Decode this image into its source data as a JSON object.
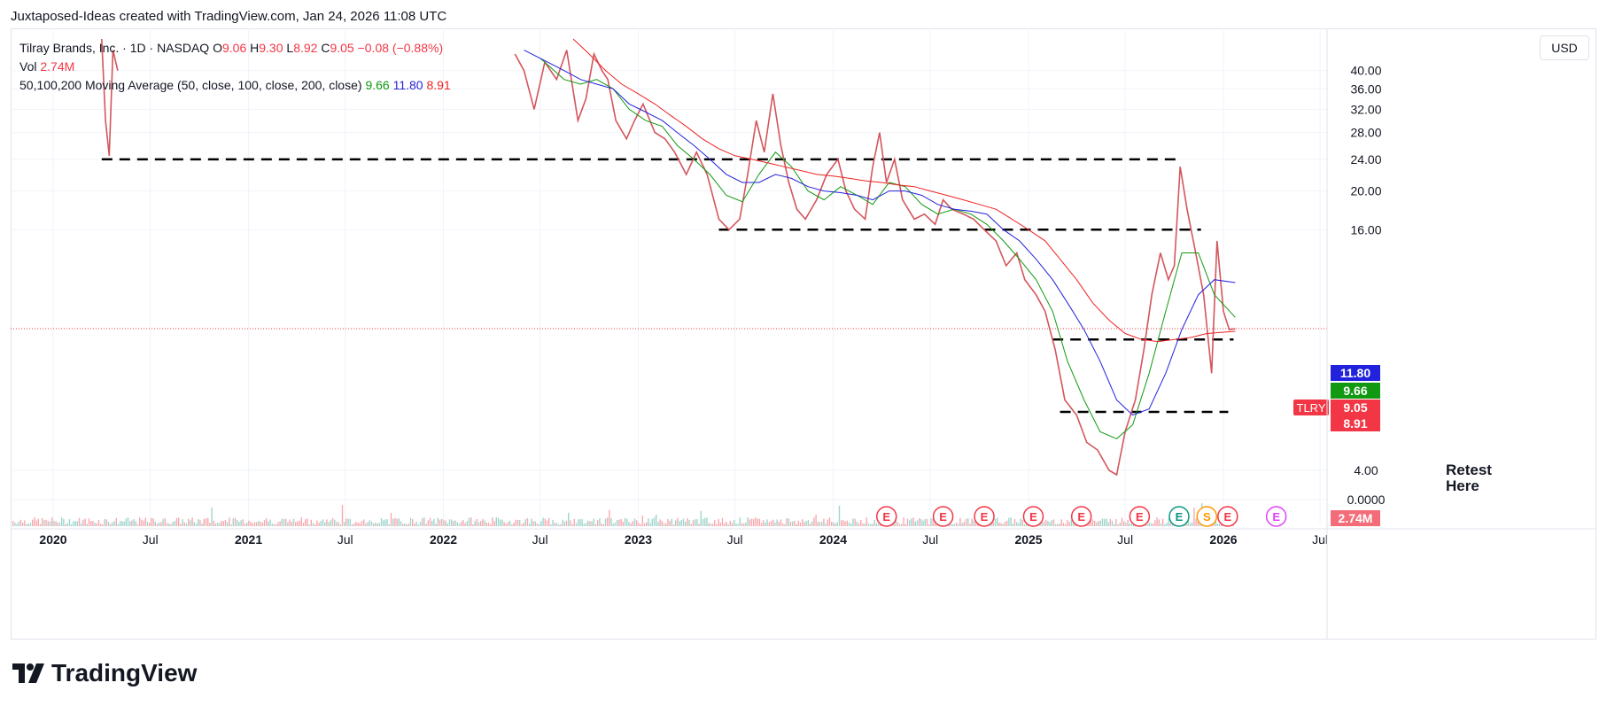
{
  "header": {
    "credit": "Juxtaposed-Ideas created with TradingView.com, Jan 24, 2026 11:08 UTC"
  },
  "legend": {
    "symbol": "Tilray Brands, Inc. · 1D · NASDAQ",
    "o_label": "O",
    "o_value": "9.06",
    "h_label": "H",
    "h_value": "9.30",
    "l_label": "L",
    "l_value": "8.92",
    "c_label": "C",
    "c_value": "9.05",
    "change": "−0.08 (−0.88%)",
    "vol_label": "Vol",
    "vol_value": "2.74M",
    "ma_label": "50,100,200 Moving Average (50, close, 100, close, 200, close)",
    "ma50_value": "9.66",
    "ma100_value": "11.80",
    "ma200_value": "8.91"
  },
  "currency_button": "USD",
  "annotation": {
    "line1": "Retest",
    "line2": "Here"
  },
  "footer": {
    "logo_text": "TradingView"
  },
  "colors": {
    "up": "#089981",
    "down": "#f23645",
    "ma50": "#119911",
    "ma100": "#2222dd",
    "ma200": "#ee2222",
    "grid": "#f0f3fa",
    "text": "#131722"
  },
  "chart_data": {
    "type": "line",
    "title": "Tilray Brands, Inc. · 1D · NASDAQ",
    "y_ticks": [
      "40.00",
      "36.00",
      "32.00",
      "28.00",
      "24.00",
      "20.00",
      "16.00",
      "4.00",
      "0.0000"
    ],
    "y_scale": "log",
    "x_ticks": [
      "2020",
      "Jul",
      "2021",
      "Jul",
      "2022",
      "Jul",
      "2023",
      "Jul",
      "2024",
      "Jul",
      "2025",
      "Jul",
      "2026",
      "Jul"
    ],
    "x_tick_major": [
      true,
      false,
      true,
      false,
      true,
      false,
      true,
      false,
      true,
      false,
      true,
      false,
      true,
      false
    ],
    "x_tick_dates": [
      "2020-01-01",
      "2020-07-01",
      "2021-01-01",
      "2021-07-01",
      "2022-01-01",
      "2022-07-01",
      "2023-01-01",
      "2023-07-01",
      "2024-01-01",
      "2024-07-01",
      "2025-01-01",
      "2025-07-01",
      "2026-01-01",
      "2026-07-01"
    ],
    "price_labels": [
      {
        "text": "11.80",
        "value": 11.8,
        "color": "#2222dd"
      },
      {
        "text": "9.66",
        "value": 9.66,
        "color": "#119911"
      },
      {
        "text": "9.05",
        "value": 9.05,
        "color": "#f23645",
        "tag": "TLRY"
      },
      {
        "text": "8.91",
        "value": 8.91,
        "color": "#f23645"
      }
    ],
    "volume_label": {
      "text": "2.74M",
      "color": "#f26d79"
    },
    "horizontal_levels": [
      {
        "value": 24.0,
        "from": "2020-04-01",
        "to": "2025-10-15"
      },
      {
        "value": 16.0,
        "from": "2023-06-01",
        "to": "2025-11-20"
      },
      {
        "value": 8.5,
        "from": "2025-02-15",
        "to": "2026-01-20"
      },
      {
        "value": 5.6,
        "from": "2025-03-01",
        "to": "2026-01-10"
      }
    ],
    "series": [
      {
        "name": "Price (close)",
        "color": "#3b3b3b",
        "points": [
          [
            "2020-04-01",
            48
          ],
          [
            "2020-04-08",
            30
          ],
          [
            "2020-04-15",
            24.5
          ],
          [
            "2020-04-22",
            45
          ],
          [
            "2020-05-01",
            40
          ],
          [
            "2022-05-15",
            44
          ],
          [
            "2022-06-01",
            40
          ],
          [
            "2022-06-20",
            32
          ],
          [
            "2022-07-10",
            42
          ],
          [
            "2022-08-01",
            38
          ],
          [
            "2022-08-20",
            45
          ],
          [
            "2022-09-10",
            30
          ],
          [
            "2022-09-25",
            34
          ],
          [
            "2022-10-10",
            44
          ],
          [
            "2022-10-25",
            40
          ],
          [
            "2022-11-05",
            38
          ],
          [
            "2022-11-20",
            30
          ],
          [
            "2022-12-10",
            27
          ],
          [
            "2022-12-25",
            30
          ],
          [
            "2023-01-10",
            33
          ],
          [
            "2023-02-01",
            28
          ],
          [
            "2023-02-20",
            27
          ],
          [
            "2023-03-10",
            25
          ],
          [
            "2023-04-01",
            22
          ],
          [
            "2023-04-20",
            25
          ],
          [
            "2023-05-10",
            22
          ],
          [
            "2023-06-01",
            17
          ],
          [
            "2023-06-20",
            16
          ],
          [
            "2023-07-10",
            17
          ],
          [
            "2023-07-25",
            22
          ],
          [
            "2023-08-10",
            30
          ],
          [
            "2023-08-25",
            25
          ],
          [
            "2023-09-10",
            35
          ],
          [
            "2023-09-25",
            26
          ],
          [
            "2023-10-10",
            21
          ],
          [
            "2023-10-25",
            18
          ],
          [
            "2023-11-10",
            17
          ],
          [
            "2023-12-01",
            19
          ],
          [
            "2023-12-20",
            22
          ],
          [
            "2024-01-10",
            24
          ],
          [
            "2024-01-25",
            20
          ],
          [
            "2024-02-10",
            18
          ],
          [
            "2024-03-01",
            17
          ],
          [
            "2024-03-15",
            23
          ],
          [
            "2024-03-28",
            28
          ],
          [
            "2024-04-10",
            21
          ],
          [
            "2024-04-25",
            24
          ],
          [
            "2024-05-10",
            19
          ],
          [
            "2024-06-01",
            17
          ],
          [
            "2024-06-20",
            17.5
          ],
          [
            "2024-07-10",
            16.5
          ],
          [
            "2024-07-25",
            19
          ],
          [
            "2024-08-10",
            18
          ],
          [
            "2024-09-01",
            17.5
          ],
          [
            "2024-09-20",
            17
          ],
          [
            "2024-10-10",
            16
          ],
          [
            "2024-11-01",
            15
          ],
          [
            "2024-11-20",
            13
          ],
          [
            "2024-12-10",
            14
          ],
          [
            "2024-12-25",
            12
          ],
          [
            "2025-01-15",
            11
          ],
          [
            "2025-02-01",
            10
          ],
          [
            "2025-02-20",
            8
          ],
          [
            "2025-03-10",
            6
          ],
          [
            "2025-04-01",
            5.5
          ],
          [
            "2025-04-20",
            4.7
          ],
          [
            "2025-05-10",
            4.5
          ],
          [
            "2025-06-01",
            4.0
          ],
          [
            "2025-06-15",
            3.9
          ],
          [
            "2025-07-01",
            5
          ],
          [
            "2025-07-20",
            6
          ],
          [
            "2025-08-05",
            8
          ],
          [
            "2025-08-20",
            11
          ],
          [
            "2025-09-05",
            14
          ],
          [
            "2025-09-20",
            12
          ],
          [
            "2025-10-01",
            13
          ],
          [
            "2025-10-12",
            23
          ],
          [
            "2025-10-25",
            18
          ],
          [
            "2025-11-10",
            14
          ],
          [
            "2025-11-25",
            11
          ],
          [
            "2025-12-10",
            7
          ],
          [
            "2025-12-20",
            15
          ],
          [
            "2026-01-01",
            10
          ],
          [
            "2026-01-12",
            9
          ],
          [
            "2026-01-23",
            9.05
          ]
        ]
      },
      {
        "name": "MA 50",
        "color": "#119911",
        "points": [
          [
            "2022-07-01",
            43
          ],
          [
            "2022-08-15",
            38
          ],
          [
            "2022-09-15",
            37
          ],
          [
            "2022-10-15",
            38
          ],
          [
            "2022-11-15",
            36
          ],
          [
            "2022-12-15",
            32
          ],
          [
            "2023-01-15",
            30
          ],
          [
            "2023-02-15",
            29
          ],
          [
            "2023-03-15",
            26
          ],
          [
            "2023-04-15",
            24
          ],
          [
            "2023-05-15",
            22
          ],
          [
            "2023-06-15",
            19.5
          ],
          [
            "2023-07-15",
            18.8
          ],
          [
            "2023-08-15",
            22
          ],
          [
            "2023-09-15",
            25
          ],
          [
            "2023-10-15",
            23
          ],
          [
            "2023-11-15",
            20
          ],
          [
            "2023-12-15",
            19
          ],
          [
            "2024-01-15",
            20.5
          ],
          [
            "2024-02-15",
            19.5
          ],
          [
            "2024-03-15",
            18.5
          ],
          [
            "2024-04-15",
            21
          ],
          [
            "2024-05-15",
            20.5
          ],
          [
            "2024-06-15",
            18.5
          ],
          [
            "2024-07-15",
            17.5
          ],
          [
            "2024-08-15",
            18
          ],
          [
            "2024-09-15",
            17.5
          ],
          [
            "2024-10-15",
            16.5
          ],
          [
            "2024-11-15",
            15
          ],
          [
            "2024-12-15",
            13.5
          ],
          [
            "2025-01-15",
            12
          ],
          [
            "2025-02-15",
            10
          ],
          [
            "2025-03-15",
            7.5
          ],
          [
            "2025-04-15",
            6
          ],
          [
            "2025-05-15",
            5
          ],
          [
            "2025-06-15",
            4.8
          ],
          [
            "2025-07-15",
            5.2
          ],
          [
            "2025-08-15",
            7
          ],
          [
            "2025-09-15",
            10
          ],
          [
            "2025-10-15",
            14
          ],
          [
            "2025-11-15",
            14
          ],
          [
            "2025-12-15",
            11
          ],
          [
            "2026-01-23",
            9.66
          ]
        ]
      },
      {
        "name": "MA 100",
        "color": "#2222dd",
        "points": [
          [
            "2022-06-01",
            45
          ],
          [
            "2022-07-15",
            42
          ],
          [
            "2022-08-15",
            40
          ],
          [
            "2022-09-15",
            38
          ],
          [
            "2022-10-15",
            37
          ],
          [
            "2022-11-15",
            36
          ],
          [
            "2022-12-15",
            33
          ],
          [
            "2023-01-15",
            31.5
          ],
          [
            "2023-02-15",
            30
          ],
          [
            "2023-03-15",
            28
          ],
          [
            "2023-04-15",
            26
          ],
          [
            "2023-05-15",
            24
          ],
          [
            "2023-06-15",
            22
          ],
          [
            "2023-07-15",
            21
          ],
          [
            "2023-08-15",
            21
          ],
          [
            "2023-09-15",
            22
          ],
          [
            "2023-10-15",
            21.5
          ],
          [
            "2023-11-15",
            20.5
          ],
          [
            "2023-12-15",
            20
          ],
          [
            "2024-01-15",
            19.8
          ],
          [
            "2024-02-15",
            19.5
          ],
          [
            "2024-03-15",
            19
          ],
          [
            "2024-04-15",
            20
          ],
          [
            "2024-05-15",
            20
          ],
          [
            "2024-06-15",
            19.5
          ],
          [
            "2024-07-15",
            18.5
          ],
          [
            "2024-08-15",
            18
          ],
          [
            "2024-09-15",
            17.8
          ],
          [
            "2024-10-15",
            17.5
          ],
          [
            "2024-11-15",
            16
          ],
          [
            "2024-12-15",
            15
          ],
          [
            "2025-01-15",
            13.5
          ],
          [
            "2025-02-15",
            12
          ],
          [
            "2025-03-15",
            10.5
          ],
          [
            "2025-04-15",
            9
          ],
          [
            "2025-05-15",
            7.5
          ],
          [
            "2025-06-15",
            6
          ],
          [
            "2025-07-15",
            5.5
          ],
          [
            "2025-08-15",
            5.7
          ],
          [
            "2025-09-15",
            7
          ],
          [
            "2025-10-15",
            9
          ],
          [
            "2025-11-15",
            11
          ],
          [
            "2025-12-15",
            12
          ],
          [
            "2026-01-23",
            11.8
          ]
        ]
      },
      {
        "name": "MA 200",
        "color": "#ee2222",
        "points": [
          [
            "2022-09-01",
            48
          ],
          [
            "2022-10-01",
            44
          ],
          [
            "2022-11-01",
            40
          ],
          [
            "2022-12-01",
            37
          ],
          [
            "2023-01-01",
            35
          ],
          [
            "2023-02-01",
            33
          ],
          [
            "2023-03-01",
            31
          ],
          [
            "2023-04-01",
            29
          ],
          [
            "2023-05-01",
            27
          ],
          [
            "2023-06-01",
            25.5
          ],
          [
            "2023-07-01",
            24.5
          ],
          [
            "2023-08-01",
            24
          ],
          [
            "2023-09-01",
            23.5
          ],
          [
            "2023-10-01",
            23
          ],
          [
            "2023-11-01",
            22.5
          ],
          [
            "2023-12-01",
            22
          ],
          [
            "2024-01-01",
            21.8
          ],
          [
            "2024-02-01",
            21.5
          ],
          [
            "2024-03-01",
            21.2
          ],
          [
            "2024-04-01",
            21
          ],
          [
            "2024-05-01",
            20.7
          ],
          [
            "2024-06-01",
            20.5
          ],
          [
            "2024-07-01",
            20
          ],
          [
            "2024-08-01",
            19.5
          ],
          [
            "2024-09-01",
            19
          ],
          [
            "2024-10-01",
            18.5
          ],
          [
            "2024-11-01",
            18
          ],
          [
            "2024-12-01",
            17
          ],
          [
            "2025-01-01",
            16
          ],
          [
            "2025-02-01",
            15
          ],
          [
            "2025-03-01",
            13.5
          ],
          [
            "2025-04-01",
            12
          ],
          [
            "2025-05-01",
            10.5
          ],
          [
            "2025-06-01",
            9.5
          ],
          [
            "2025-07-01",
            8.8
          ],
          [
            "2025-08-01",
            8.5
          ],
          [
            "2025-09-01",
            8.4
          ],
          [
            "2025-10-01",
            8.5
          ],
          [
            "2025-11-01",
            8.6
          ],
          [
            "2025-12-01",
            8.8
          ],
          [
            "2026-01-23",
            8.91
          ]
        ]
      }
    ],
    "events": [
      {
        "label": "E",
        "date": "2024-04-10",
        "color": "#f23645"
      },
      {
        "label": "E",
        "date": "2024-07-25",
        "color": "#f23645"
      },
      {
        "label": "E",
        "date": "2024-10-10",
        "color": "#f23645"
      },
      {
        "label": "E",
        "date": "2025-01-10",
        "color": "#f23645"
      },
      {
        "label": "E",
        "date": "2025-04-10",
        "color": "#f23645"
      },
      {
        "label": "E",
        "date": "2025-07-28",
        "color": "#f23645"
      },
      {
        "label": "E",
        "date": "2025-10-10",
        "color": "#089981"
      },
      {
        "label": "S",
        "date": "2025-12-01",
        "color": "#ff9800"
      },
      {
        "label": "E",
        "date": "2026-01-09",
        "color": "#f23645"
      },
      {
        "label": "E",
        "date": "2026-04-10",
        "color": "#e040fb"
      }
    ]
  }
}
